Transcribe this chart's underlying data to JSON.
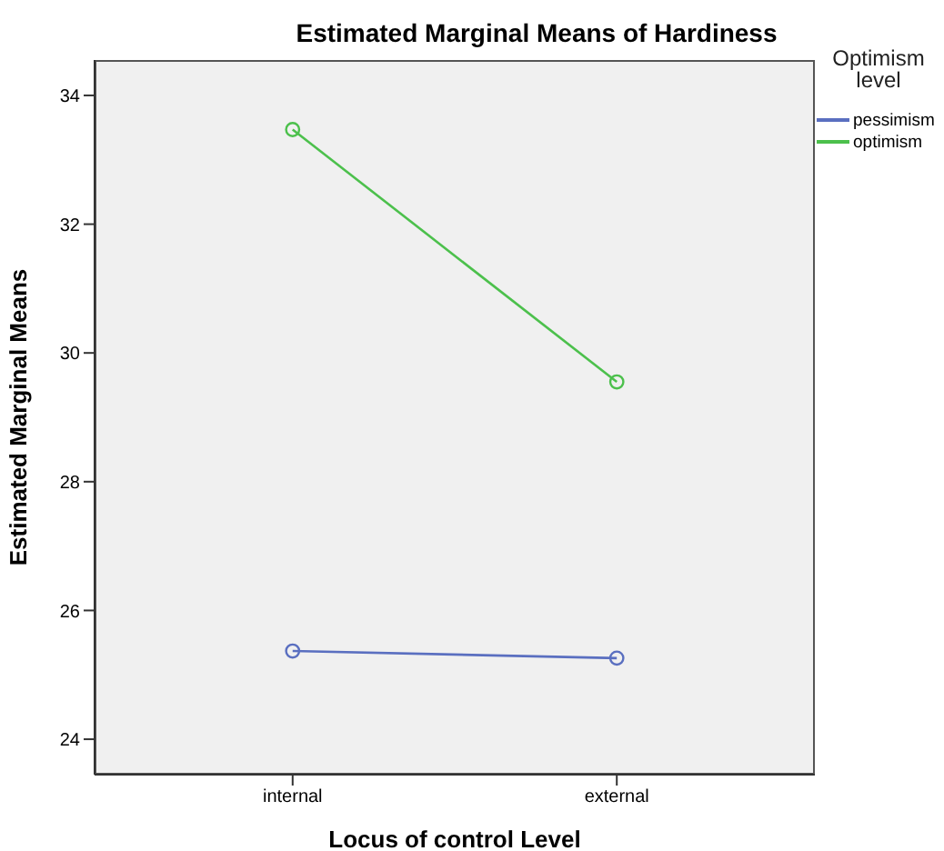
{
  "chart_data": {
    "type": "line",
    "title": "Estimated Marginal Means of Hardiness",
    "xlabel": "Locus of control Level",
    "ylabel": "Estimated Marginal Means",
    "legend_title": "Optimism level",
    "categories": [
      "internal",
      "external"
    ],
    "series": [
      {
        "name": "pessimism",
        "color": "#5a6fc0",
        "values": [
          25.37,
          25.26
        ]
      },
      {
        "name": "optimism",
        "color": "#4cc04c",
        "values": [
          33.47,
          29.55
        ]
      }
    ],
    "ylim": [
      23.45,
      34.55
    ],
    "yticks": [
      24,
      26,
      28,
      30,
      32,
      34
    ],
    "legend": "top right",
    "marker": "circle",
    "line_style": "solid"
  }
}
